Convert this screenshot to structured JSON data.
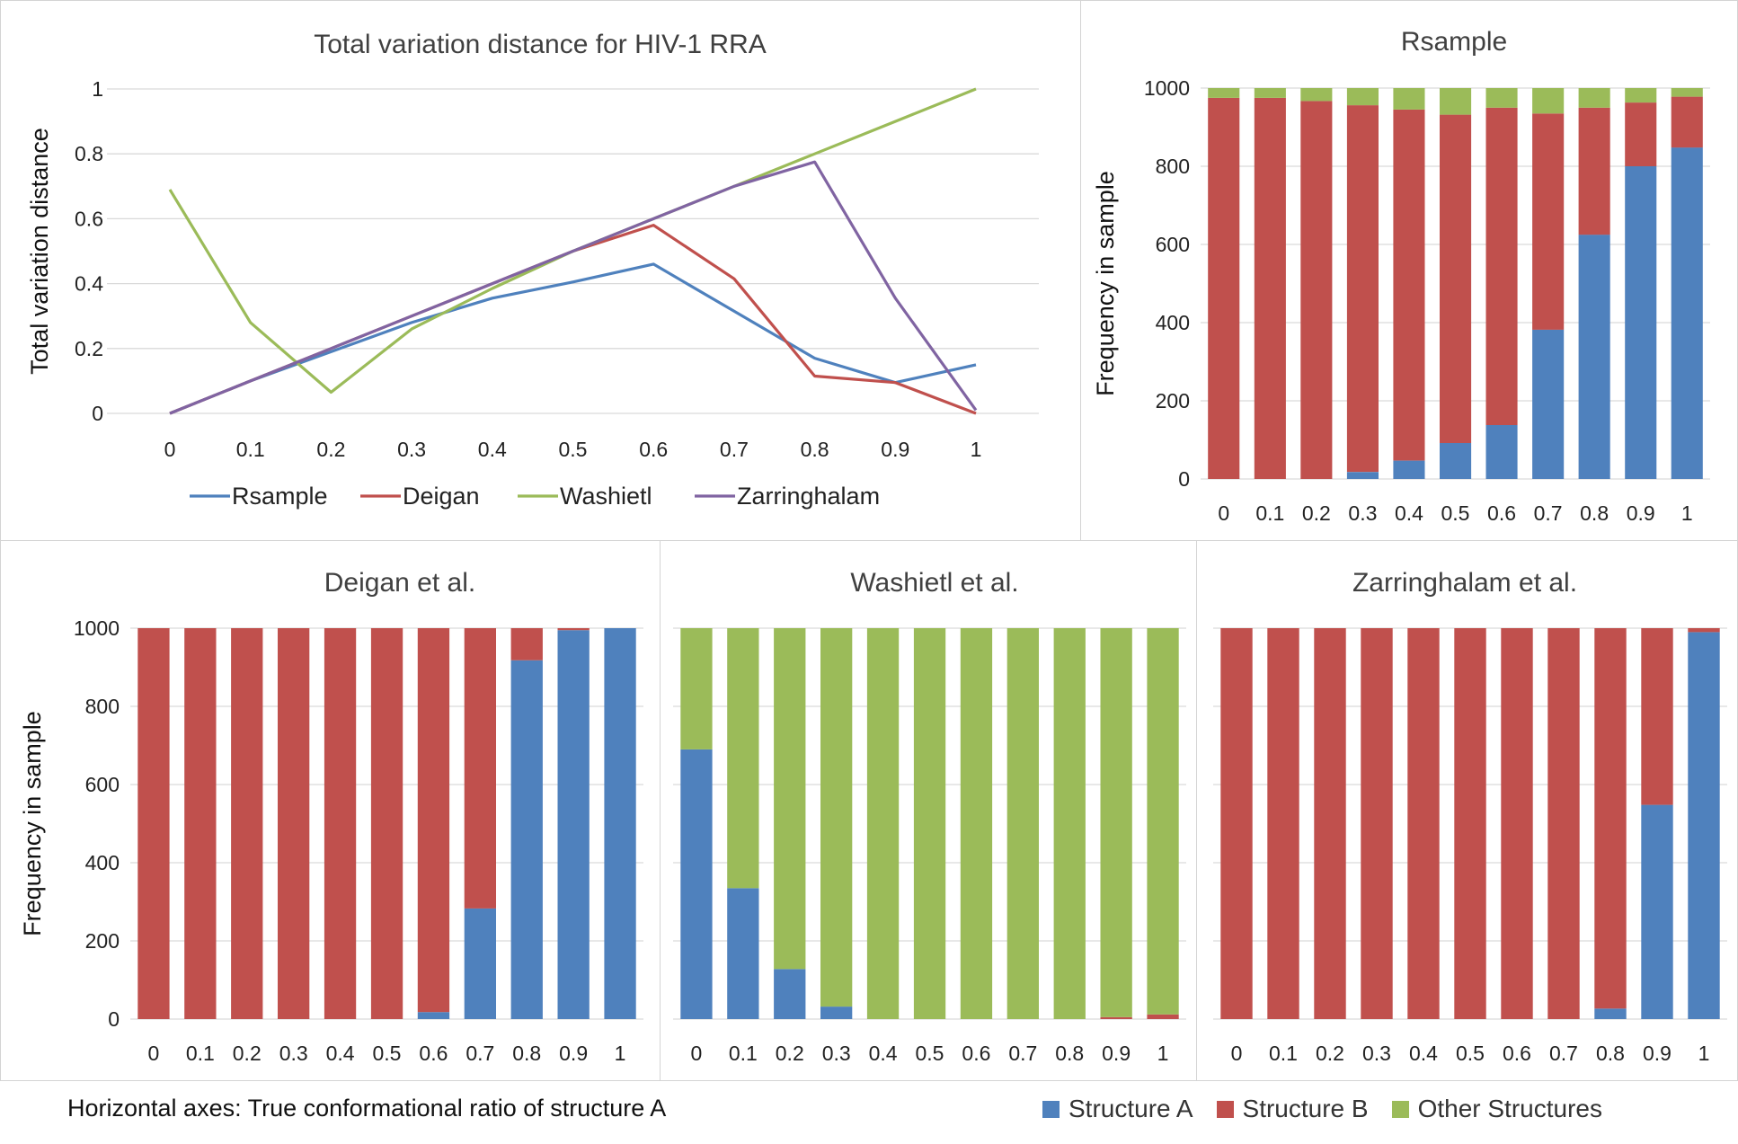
{
  "footer": {
    "note": "Horizontal axes: True conformational ratio of structure A"
  },
  "colors": {
    "structure_a": "#4f81bd",
    "structure_b": "#c0504d",
    "other": "#9bbb59",
    "rsample": "#4f81bd",
    "deigan": "#c0504d",
    "washietl": "#9bbb59",
    "zarringhalam": "#8064a2",
    "grid": "#d9d9d9"
  },
  "bar_legend": [
    {
      "label": "Structure A",
      "color": "#4f81bd"
    },
    {
      "label": "Structure B",
      "color": "#c0504d"
    },
    {
      "label": "Other Structures",
      "color": "#9bbb59"
    }
  ],
  "chart_data": [
    {
      "id": "tvd",
      "type": "line",
      "title": "Total variation distance for HIV-1 RRA",
      "xlabel": "",
      "ylabel": "Total variation distance",
      "x": [
        0,
        0.1,
        0.2,
        0.3,
        0.4,
        0.5,
        0.6,
        0.7,
        0.8,
        0.9,
        1
      ],
      "x_tick_labels": [
        "0",
        "0.1",
        "0.2",
        "0.3",
        "0.4",
        "0.5",
        "0.6",
        "0.7",
        "0.8",
        "0.9",
        "1"
      ],
      "y_ticks": [
        0,
        0.2,
        0.4,
        0.6,
        0.8,
        1
      ],
      "y_tick_labels": [
        "0",
        "0.2",
        "0.4",
        "0.6",
        "0.8",
        "1"
      ],
      "ylim": [
        0,
        1
      ],
      "grid": true,
      "legend": "bottom",
      "series": [
        {
          "name": "Rsample",
          "color": "#4f81bd",
          "values": [
            0,
            0.1,
            0.19,
            0.28,
            0.355,
            0.405,
            0.46,
            0.315,
            0.17,
            0.095,
            0.15
          ]
        },
        {
          "name": "Deigan",
          "color": "#c0504d",
          "values": [
            0,
            0.1,
            0.2,
            0.3,
            0.4,
            0.5,
            0.58,
            0.415,
            0.115,
            0.095,
            0
          ]
        },
        {
          "name": "Washietl",
          "color": "#9bbb59",
          "values": [
            0.69,
            0.28,
            0.065,
            0.26,
            0.385,
            0.5,
            0.6,
            0.7,
            0.8,
            0.9,
            1
          ]
        },
        {
          "name": "Zarringhalam",
          "color": "#8064a2",
          "values": [
            0,
            0.1,
            0.2,
            0.3,
            0.4,
            0.5,
            0.6,
            0.7,
            0.775,
            0.355,
            0.01
          ]
        }
      ]
    },
    {
      "id": "rsample",
      "type": "bar",
      "stacked": true,
      "title": "Rsample",
      "ylabel": "Frequency in sample",
      "categories": [
        "0",
        "0.1",
        "0.2",
        "0.3",
        "0.4",
        "0.5",
        "0.6",
        "0.7",
        "0.8",
        "0.9",
        "1"
      ],
      "y_ticks": [
        0,
        200,
        400,
        600,
        800,
        1000
      ],
      "y_tick_labels": [
        "0",
        "200",
        "400",
        "600",
        "800",
        "1000"
      ],
      "ylim": [
        0,
        1000
      ],
      "series": [
        {
          "name": "Structure A",
          "color": "#4f81bd",
          "values": [
            0,
            0,
            0,
            18,
            47,
            92,
            138,
            382,
            625,
            800,
            848
          ]
        },
        {
          "name": "Structure B",
          "color": "#c0504d",
          "values": [
            975,
            975,
            967,
            938,
            898,
            840,
            812,
            553,
            325,
            163,
            130
          ]
        },
        {
          "name": "Other Structures",
          "color": "#9bbb59",
          "values": [
            25,
            25,
            33,
            44,
            55,
            68,
            50,
            65,
            50,
            37,
            22
          ]
        }
      ]
    },
    {
      "id": "deigan",
      "type": "bar",
      "stacked": true,
      "title": "Deigan et al.",
      "ylabel": "Frequency in sample",
      "categories": [
        "0",
        "0.1",
        "0.2",
        "0.3",
        "0.4",
        "0.5",
        "0.6",
        "0.7",
        "0.8",
        "0.9",
        "1"
      ],
      "y_ticks": [
        0,
        200,
        400,
        600,
        800,
        1000
      ],
      "y_tick_labels": [
        "0",
        "200",
        "400",
        "600",
        "800",
        "1000"
      ],
      "ylim": [
        0,
        1000
      ],
      "series": [
        {
          "name": "Structure A",
          "color": "#4f81bd",
          "values": [
            0,
            0,
            0,
            0,
            0,
            0,
            18,
            283,
            918,
            995,
            1000
          ]
        },
        {
          "name": "Structure B",
          "color": "#c0504d",
          "values": [
            1000,
            1000,
            1000,
            1000,
            1000,
            1000,
            982,
            717,
            82,
            5,
            0
          ]
        },
        {
          "name": "Other Structures",
          "color": "#9bbb59",
          "values": [
            0,
            0,
            0,
            0,
            0,
            0,
            0,
            0,
            0,
            0,
            0
          ]
        }
      ]
    },
    {
      "id": "washietl",
      "type": "bar",
      "stacked": true,
      "title": "Washietl et al.",
      "ylabel": "",
      "categories": [
        "0",
        "0.1",
        "0.2",
        "0.3",
        "0.4",
        "0.5",
        "0.6",
        "0.7",
        "0.8",
        "0.9",
        "1"
      ],
      "y_ticks": [
        0,
        200,
        400,
        600,
        800,
        1000
      ],
      "y_tick_labels": [],
      "ylim": [
        0,
        1000
      ],
      "series": [
        {
          "name": "Structure A",
          "color": "#4f81bd",
          "values": [
            690,
            335,
            128,
            32,
            0,
            0,
            0,
            0,
            0,
            0,
            0
          ]
        },
        {
          "name": "Structure B",
          "color": "#c0504d",
          "values": [
            0,
            0,
            0,
            0,
            0,
            0,
            0,
            0,
            0,
            5,
            12
          ]
        },
        {
          "name": "Other Structures",
          "color": "#9bbb59",
          "values": [
            310,
            665,
            872,
            968,
            1000,
            1000,
            1000,
            1000,
            1000,
            995,
            988
          ]
        }
      ]
    },
    {
      "id": "zarringhalam",
      "type": "bar",
      "stacked": true,
      "title": "Zarringhalam et al.",
      "ylabel": "",
      "categories": [
        "0",
        "0.1",
        "0.2",
        "0.3",
        "0.4",
        "0.5",
        "0.6",
        "0.7",
        "0.8",
        "0.9",
        "1"
      ],
      "y_ticks": [
        0,
        200,
        400,
        600,
        800,
        1000
      ],
      "y_tick_labels": [],
      "ylim": [
        0,
        1000
      ],
      "series": [
        {
          "name": "Structure A",
          "color": "#4f81bd",
          "values": [
            0,
            0,
            0,
            0,
            0,
            0,
            0,
            0,
            27,
            548,
            990
          ]
        },
        {
          "name": "Structure B",
          "color": "#c0504d",
          "values": [
            1000,
            1000,
            1000,
            1000,
            1000,
            1000,
            1000,
            1000,
            973,
            452,
            10
          ]
        },
        {
          "name": "Other Structures",
          "color": "#9bbb59",
          "values": [
            0,
            0,
            0,
            0,
            0,
            0,
            0,
            0,
            0,
            0,
            0
          ]
        }
      ]
    }
  ]
}
